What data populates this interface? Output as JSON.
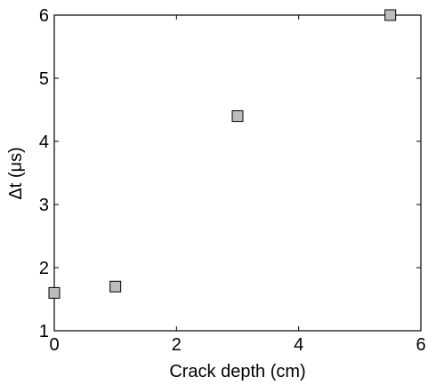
{
  "chart_data": {
    "type": "scatter",
    "title": "",
    "xlabel": "Crack depth (cm)",
    "ylabel": "Δt (μs)",
    "xlim": [
      0,
      6
    ],
    "ylim": [
      1,
      6
    ],
    "xticks": [
      "0",
      "2",
      "4",
      "6"
    ],
    "yticks": [
      "1",
      "2",
      "3",
      "4",
      "5",
      "6"
    ],
    "grid": false,
    "series": [
      {
        "marker": "square",
        "color": "#bdbdbd",
        "edge_color": "#000000",
        "points": [
          {
            "x": 0,
            "y": 1.6
          },
          {
            "x": 1,
            "y": 1.7
          },
          {
            "x": 3,
            "y": 4.4
          },
          {
            "x": 5.5,
            "y": 6.0
          }
        ]
      }
    ]
  }
}
